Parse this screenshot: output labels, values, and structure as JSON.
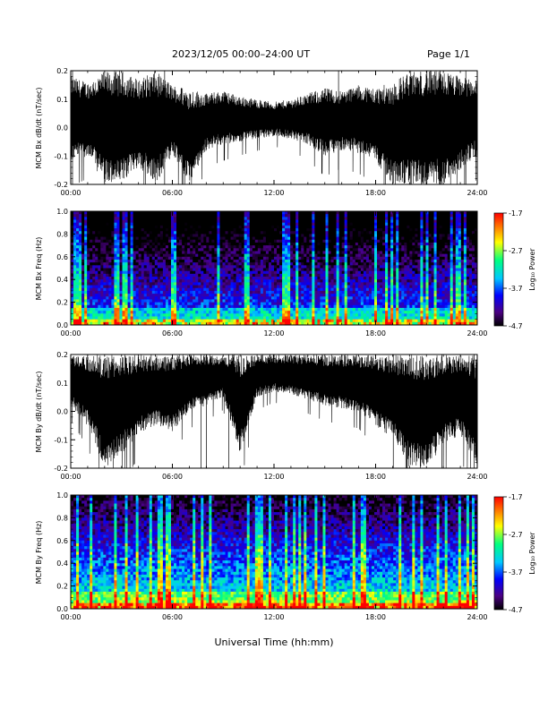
{
  "header": {
    "title": "2023/12/05  00:00–24:00 UT",
    "page": "Page 1/1"
  },
  "xlabel": "Universal Time (hh:mm)",
  "colorbar": {
    "label": "Log₁₀ Power",
    "ticks": [
      "-1.7",
      "-2.7",
      "-3.7",
      "-4.7"
    ],
    "range": [
      -4.7,
      -1.7
    ],
    "colormap": [
      "#000000",
      "#4b0082",
      "#0000ff",
      "#00c8ff",
      "#00ff80",
      "#ffff00",
      "#ff8000",
      "#ff0000"
    ]
  },
  "chart_data": [
    {
      "type": "line",
      "ylabel": "MCM Bx dB/dt (nT/sec)",
      "xlim": [
        0,
        24
      ],
      "ylim": [
        -0.2,
        0.2
      ],
      "xticks": [
        "00:00",
        "06:00",
        "12:00",
        "18:00",
        "24:00"
      ],
      "yticks": [
        "0.2",
        "0.1",
        "0.0",
        "-0.1",
        "-0.2"
      ],
      "envelope": {
        "x": [
          0,
          1,
          2,
          3,
          4,
          5,
          6,
          7,
          8,
          9,
          10,
          11,
          12,
          13,
          14,
          15,
          16,
          17,
          18,
          19,
          20,
          21,
          22,
          23,
          24
        ],
        "upper": [
          0.18,
          0.16,
          0.2,
          0.2,
          0.17,
          0.2,
          0.15,
          0.14,
          0.12,
          0.13,
          0.11,
          0.1,
          0.09,
          0.1,
          0.12,
          0.14,
          0.13,
          0.15,
          0.14,
          0.16,
          0.2,
          0.2,
          0.2,
          0.18,
          0.17
        ],
        "lower": [
          -0.12,
          -0.1,
          -0.2,
          -0.2,
          -0.14,
          -0.2,
          -0.1,
          -0.2,
          -0.08,
          -0.06,
          -0.05,
          -0.04,
          -0.03,
          -0.04,
          -0.06,
          -0.1,
          -0.08,
          -0.09,
          -0.12,
          -0.2,
          -0.2,
          -0.2,
          -0.2,
          -0.15,
          -0.1
        ]
      }
    },
    {
      "type": "heatmap",
      "ylabel": "MCM Bx Freq (Hz)",
      "xlim": [
        0,
        24
      ],
      "ylim": [
        0,
        1.0
      ],
      "xticks": [
        "00:00",
        "06:00",
        "12:00",
        "18:00",
        "24:00"
      ],
      "yticks": [
        "1.0",
        "0.8",
        "0.6",
        "0.4",
        "0.2",
        "0.0"
      ],
      "zlim": [
        -4.7,
        -1.7
      ]
    },
    {
      "type": "line",
      "ylabel": "MCM By dB/dt (nT/sec)",
      "xlim": [
        0,
        24
      ],
      "ylim": [
        -0.2,
        0.2
      ],
      "xticks": [
        "00:00",
        "06:00",
        "12:00",
        "18:00",
        "24:00"
      ],
      "yticks": [
        "0.2",
        "0.1",
        "0.0",
        "-0.1",
        "-0.2"
      ],
      "envelope": {
        "x": [
          0,
          1,
          2,
          3,
          4,
          5,
          6,
          7,
          8,
          9,
          10,
          11,
          12,
          13,
          14,
          15,
          16,
          17,
          18,
          19,
          20,
          21,
          22,
          23,
          24
        ],
        "upper": [
          0.2,
          0.2,
          0.2,
          0.2,
          0.2,
          0.2,
          0.2,
          0.2,
          0.2,
          0.2,
          0.2,
          0.2,
          0.2,
          0.2,
          0.2,
          0.2,
          0.2,
          0.2,
          0.2,
          0.2,
          0.2,
          0.2,
          0.2,
          0.2,
          0.2
        ],
        "lower": [
          0.02,
          -0.05,
          -0.2,
          -0.15,
          -0.08,
          -0.05,
          -0.07,
          0.0,
          0.02,
          0.05,
          -0.15,
          0.05,
          0.07,
          0.06,
          0.04,
          0.02,
          0.01,
          0.0,
          -0.05,
          -0.1,
          -0.2,
          -0.2,
          -0.12,
          -0.08,
          -0.2
        ]
      }
    },
    {
      "type": "heatmap",
      "ylabel": "MCM By Freq (Hz)",
      "xlim": [
        0,
        24
      ],
      "ylim": [
        0,
        1.0
      ],
      "xticks": [
        "00:00",
        "06:00",
        "12:00",
        "18:00",
        "24:00"
      ],
      "yticks": [
        "1.0",
        "0.8",
        "0.6",
        "0.4",
        "0.2",
        "0.0"
      ],
      "zlim": [
        -4.7,
        -1.7
      ]
    }
  ]
}
